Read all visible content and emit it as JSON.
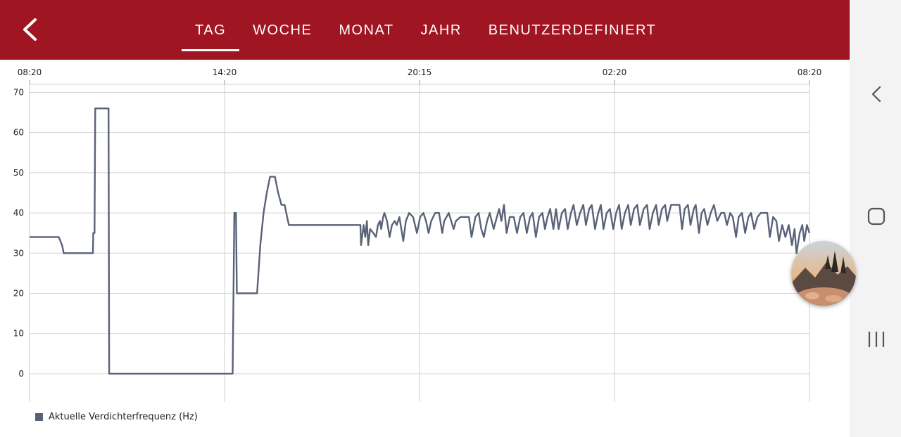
{
  "header": {
    "tabs": [
      {
        "label": "TAG",
        "active": true
      },
      {
        "label": "WOCHE",
        "active": false
      },
      {
        "label": "MONAT",
        "active": false
      },
      {
        "label": "JAHR",
        "active": false
      },
      {
        "label": "BENUTZERDEFINIERT",
        "active": false
      }
    ],
    "back_icon": "chevron-left-icon",
    "bar_color": "#a01522"
  },
  "chart_data": {
    "type": "line",
    "x_tick_labels": [
      "08:20",
      "14:20",
      "20:15",
      "02:20",
      "08:20"
    ],
    "y_ticks": [
      0,
      10,
      20,
      30,
      40,
      50,
      60,
      70
    ],
    "ylim": [
      -7,
      72
    ],
    "x_range_hours": [
      0,
      24
    ],
    "grid": true,
    "legend_position": "bottom-left",
    "series": [
      {
        "name": "Aktuelle Verdichterfrequenz (Hz)",
        "color": "#5a6278",
        "points": [
          [
            0.0,
            34
          ],
          [
            0.9,
            34
          ],
          [
            1.0,
            32
          ],
          [
            1.05,
            30
          ],
          [
            1.6,
            30
          ],
          [
            1.95,
            30
          ],
          [
            1.96,
            35
          ],
          [
            2.0,
            35
          ],
          [
            2.02,
            66
          ],
          [
            2.4,
            66
          ],
          [
            2.43,
            66
          ],
          [
            2.45,
            0
          ],
          [
            6.2,
            0
          ],
          [
            6.25,
            0
          ],
          [
            6.3,
            40
          ],
          [
            6.35,
            40
          ],
          [
            6.38,
            20
          ],
          [
            7.0,
            20
          ],
          [
            7.1,
            32
          ],
          [
            7.2,
            40
          ],
          [
            7.3,
            45
          ],
          [
            7.4,
            49
          ],
          [
            7.55,
            49
          ],
          [
            7.65,
            45
          ],
          [
            7.75,
            42
          ],
          [
            7.85,
            42
          ],
          [
            7.9,
            40
          ],
          [
            7.98,
            37
          ],
          [
            8.5,
            37
          ],
          [
            10.18,
            37
          ],
          [
            10.2,
            32
          ],
          [
            10.28,
            37
          ],
          [
            10.33,
            34
          ],
          [
            10.38,
            38
          ],
          [
            10.42,
            32
          ],
          [
            10.48,
            36
          ],
          [
            10.58,
            35
          ],
          [
            10.66,
            34
          ],
          [
            10.72,
            37
          ],
          [
            10.78,
            38
          ],
          [
            10.82,
            36
          ],
          [
            10.88,
            39
          ],
          [
            10.92,
            40
          ],
          [
            11.0,
            38
          ],
          [
            11.08,
            34
          ],
          [
            11.15,
            37
          ],
          [
            11.24,
            38
          ],
          [
            11.3,
            37
          ],
          [
            11.38,
            39
          ],
          [
            11.5,
            33
          ],
          [
            11.58,
            38
          ],
          [
            11.68,
            40
          ],
          [
            11.8,
            39
          ],
          [
            11.92,
            35
          ],
          [
            12.02,
            39
          ],
          [
            12.12,
            40
          ],
          [
            12.2,
            38
          ],
          [
            12.28,
            35
          ],
          [
            12.36,
            38
          ],
          [
            12.48,
            40
          ],
          [
            12.6,
            40
          ],
          [
            12.7,
            35
          ],
          [
            12.76,
            38
          ],
          [
            12.9,
            40
          ],
          [
            13.05,
            36
          ],
          [
            13.12,
            38
          ],
          [
            13.26,
            39
          ],
          [
            13.4,
            39
          ],
          [
            13.52,
            39
          ],
          [
            13.6,
            34
          ],
          [
            13.72,
            39
          ],
          [
            13.82,
            40
          ],
          [
            13.9,
            36
          ],
          [
            13.98,
            34
          ],
          [
            14.08,
            38
          ],
          [
            14.16,
            40
          ],
          [
            14.28,
            36
          ],
          [
            14.38,
            39
          ],
          [
            14.45,
            41
          ],
          [
            14.52,
            38
          ],
          [
            14.6,
            42
          ],
          [
            14.68,
            35
          ],
          [
            14.78,
            39
          ],
          [
            14.9,
            39
          ],
          [
            15.0,
            35
          ],
          [
            15.1,
            39
          ],
          [
            15.2,
            40
          ],
          [
            15.3,
            35
          ],
          [
            15.4,
            39
          ],
          [
            15.48,
            40
          ],
          [
            15.58,
            34
          ],
          [
            15.68,
            39
          ],
          [
            15.78,
            40
          ],
          [
            15.86,
            36
          ],
          [
            15.94,
            39
          ],
          [
            16.02,
            41
          ],
          [
            16.12,
            36
          ],
          [
            16.2,
            41
          ],
          [
            16.28,
            36
          ],
          [
            16.38,
            40
          ],
          [
            16.48,
            41
          ],
          [
            16.56,
            36
          ],
          [
            16.66,
            40
          ],
          [
            16.74,
            42
          ],
          [
            16.84,
            37
          ],
          [
            16.94,
            40
          ],
          [
            17.04,
            42
          ],
          [
            17.12,
            37
          ],
          [
            17.22,
            41
          ],
          [
            17.3,
            42
          ],
          [
            17.4,
            36
          ],
          [
            17.5,
            40
          ],
          [
            17.58,
            42
          ],
          [
            17.66,
            36
          ],
          [
            17.76,
            40
          ],
          [
            17.86,
            41
          ],
          [
            17.96,
            36
          ],
          [
            18.05,
            40
          ],
          [
            18.14,
            42
          ],
          [
            18.22,
            36
          ],
          [
            18.32,
            40
          ],
          [
            18.42,
            42
          ],
          [
            18.5,
            37
          ],
          [
            18.6,
            41
          ],
          [
            18.7,
            42
          ],
          [
            18.78,
            37
          ],
          [
            18.9,
            41
          ],
          [
            19.0,
            42
          ],
          [
            19.08,
            36
          ],
          [
            19.18,
            40
          ],
          [
            19.28,
            42
          ],
          [
            19.36,
            37
          ],
          [
            19.46,
            41
          ],
          [
            19.56,
            42
          ],
          [
            19.62,
            38
          ],
          [
            19.74,
            42
          ],
          [
            19.86,
            42
          ],
          [
            20.0,
            42
          ],
          [
            20.08,
            36
          ],
          [
            20.16,
            41
          ],
          [
            20.26,
            42
          ],
          [
            20.34,
            37
          ],
          [
            20.44,
            41
          ],
          [
            20.5,
            42
          ],
          [
            20.6,
            35
          ],
          [
            20.68,
            40
          ],
          [
            20.76,
            41
          ],
          [
            20.86,
            37
          ],
          [
            20.96,
            40
          ],
          [
            21.06,
            42
          ],
          [
            21.16,
            38
          ],
          [
            21.28,
            40
          ],
          [
            21.38,
            40
          ],
          [
            21.46,
            37
          ],
          [
            21.56,
            40
          ],
          [
            21.64,
            39
          ],
          [
            21.74,
            34
          ],
          [
            21.82,
            39
          ],
          [
            21.92,
            40
          ],
          [
            22.02,
            35
          ],
          [
            22.12,
            39
          ],
          [
            22.2,
            40
          ],
          [
            22.3,
            36
          ],
          [
            22.4,
            39
          ],
          [
            22.5,
            40
          ],
          [
            22.7,
            40
          ],
          [
            22.78,
            34
          ],
          [
            22.88,
            39
          ],
          [
            22.98,
            38
          ],
          [
            23.06,
            33
          ],
          [
            23.16,
            37
          ],
          [
            23.26,
            34
          ],
          [
            23.36,
            37
          ],
          [
            23.46,
            32
          ],
          [
            23.54,
            36
          ],
          [
            23.6,
            30
          ],
          [
            23.7,
            35
          ],
          [
            23.78,
            37
          ],
          [
            23.84,
            33
          ],
          [
            23.92,
            37
          ],
          [
            24.0,
            35
          ]
        ]
      }
    ]
  },
  "nav": {
    "back_icon": "chevron-left-icon",
    "home_icon": "home-square-icon",
    "recents_icon": "recents-icon"
  },
  "bubble": {
    "icon": "chat-head-avatar-icon"
  }
}
